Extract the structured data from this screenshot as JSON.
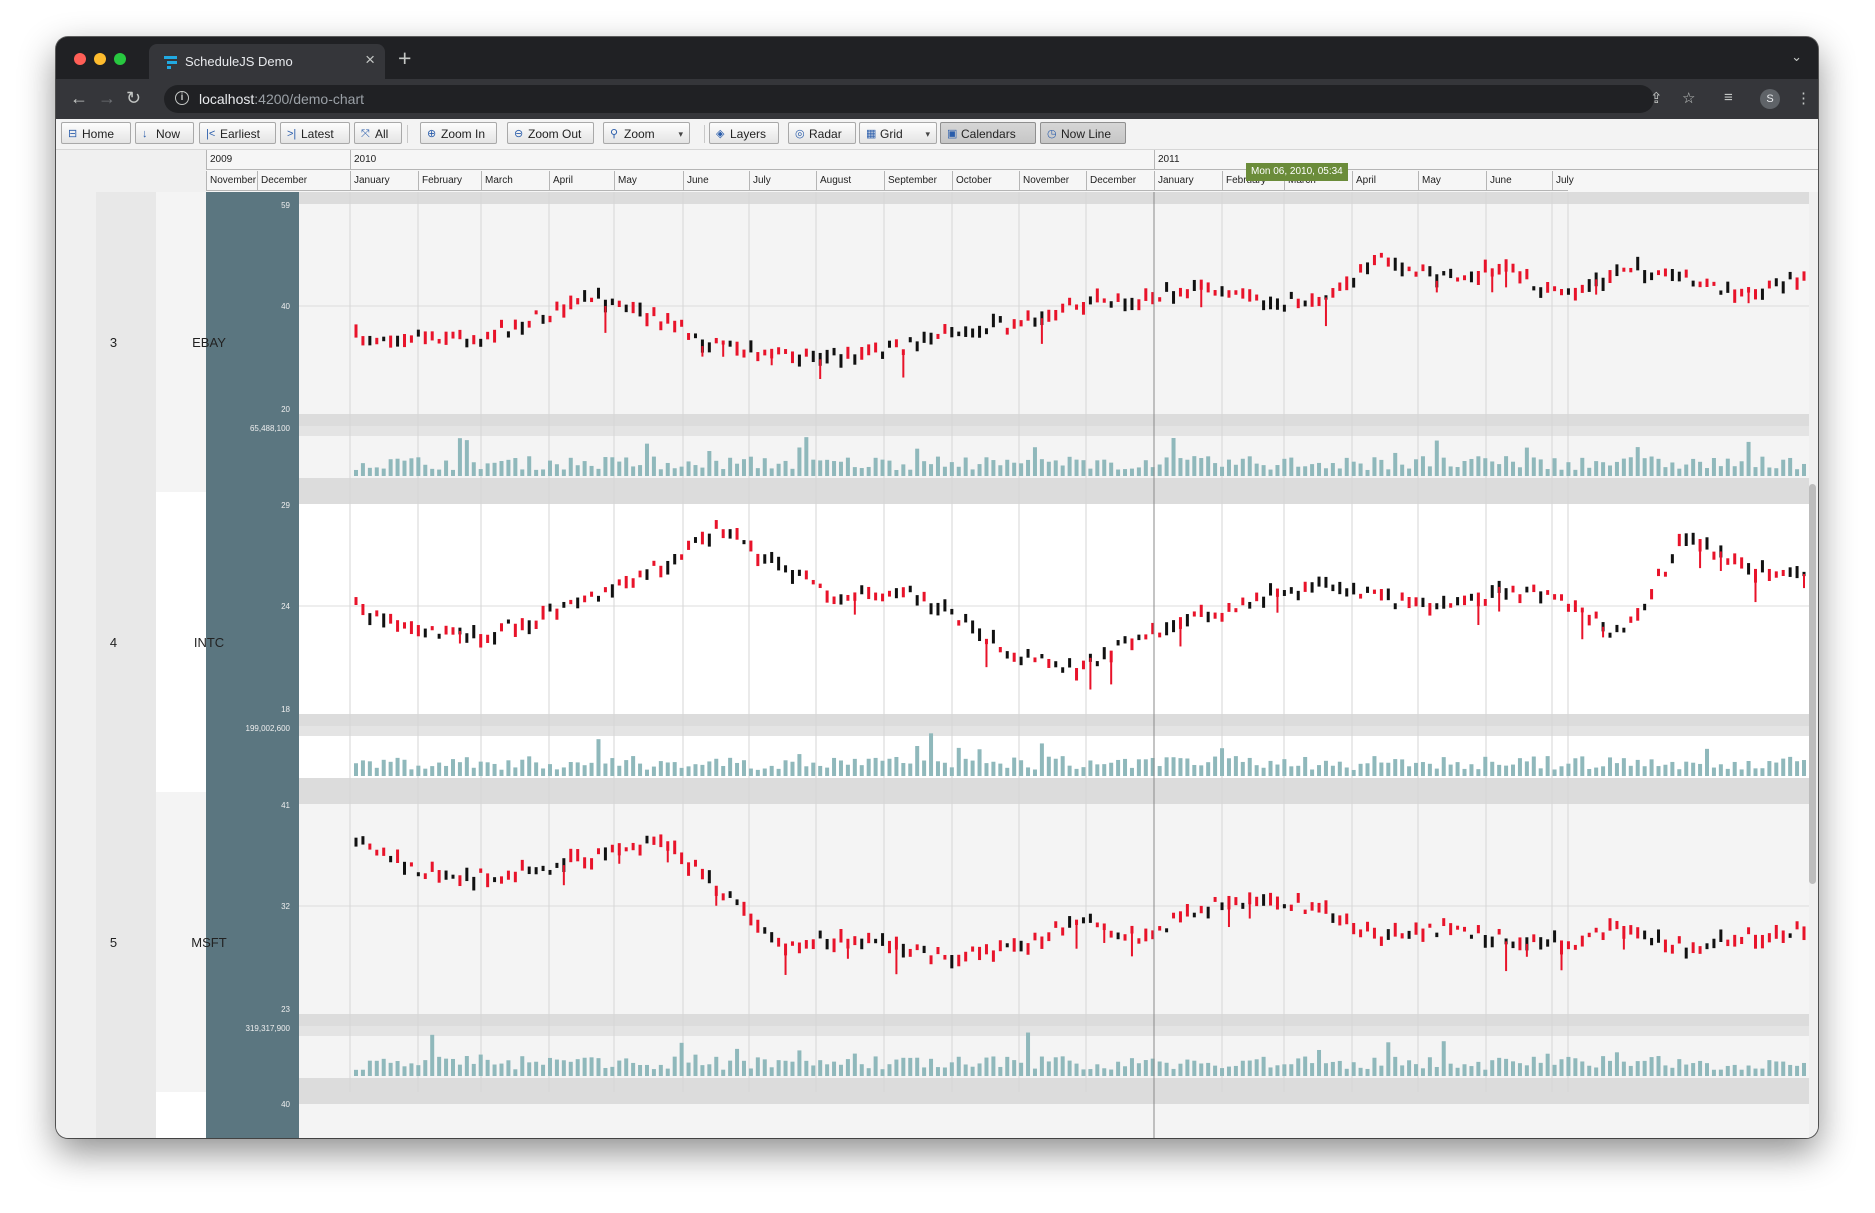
{
  "browser": {
    "tab_title": "ScheduleJS Demo",
    "url_host": "localhost",
    "url_path": ":4200/demo-chart",
    "profile_initial": "S"
  },
  "toolbar": {
    "buttons": [
      {
        "id": "home",
        "label": "Home",
        "icon": "home-icon",
        "pressed": false
      },
      {
        "id": "now",
        "label": "Now",
        "icon": "arrow-down-icon",
        "pressed": false
      },
      {
        "id": "earliest",
        "label": "Earliest",
        "icon": "skip-start-icon",
        "pressed": false
      },
      {
        "id": "latest",
        "label": "Latest",
        "icon": "skip-end-icon",
        "pressed": false
      },
      {
        "id": "all",
        "label": "All",
        "icon": "expand-icon",
        "pressed": false
      },
      {
        "id": "zoom-in",
        "label": "Zoom In",
        "icon": "zoom-in-icon",
        "pressed": false
      },
      {
        "id": "zoom-out",
        "label": "Zoom Out",
        "icon": "zoom-out-icon",
        "pressed": false
      },
      {
        "id": "zoom",
        "label": "Zoom",
        "icon": "zoom-icon",
        "pressed": false,
        "dropdown": true
      },
      {
        "id": "layers",
        "label": "Layers",
        "icon": "layers-icon",
        "pressed": false
      },
      {
        "id": "radar",
        "label": "Radar",
        "icon": "radar-icon",
        "pressed": false
      },
      {
        "id": "grid",
        "label": "Grid",
        "icon": "grid-icon",
        "pressed": false,
        "dropdown": true
      },
      {
        "id": "calendars",
        "label": "Calendars",
        "icon": "calendar-icon",
        "pressed": true
      },
      {
        "id": "now-line",
        "label": "Now Line",
        "icon": "clock-icon",
        "pressed": true
      }
    ]
  },
  "timeline": {
    "years": [
      "2009",
      "2010",
      "2011"
    ],
    "months": [
      "November",
      "December",
      "January",
      "February",
      "March",
      "April",
      "May",
      "June",
      "July",
      "August",
      "September",
      "October",
      "November",
      "December",
      "January",
      "February",
      "March",
      "April",
      "May",
      "June",
      "July"
    ],
    "now_label": "Mon 06, 2010, 05:34"
  },
  "rows": [
    {
      "num": "3",
      "label": "EBAY",
      "price_axis": [
        "59",
        "40",
        "20"
      ],
      "volume_max": "65,488,100"
    },
    {
      "num": "4",
      "label": "INTC",
      "price_axis": [
        "29",
        "24",
        "18"
      ],
      "volume_max": "199,002,600"
    },
    {
      "num": "5",
      "label": "MSFT",
      "price_axis": [
        "41",
        "32",
        "23"
      ],
      "volume_max": "319,317,900"
    }
  ],
  "next_row_axis_top": "40",
  "colors": {
    "up_candle": "#111111",
    "down_candle": "#e8132a",
    "volume_bar": "#8fb8bb",
    "axis_panel": "#5b7680",
    "now_tag": "#6b8c3a"
  }
}
